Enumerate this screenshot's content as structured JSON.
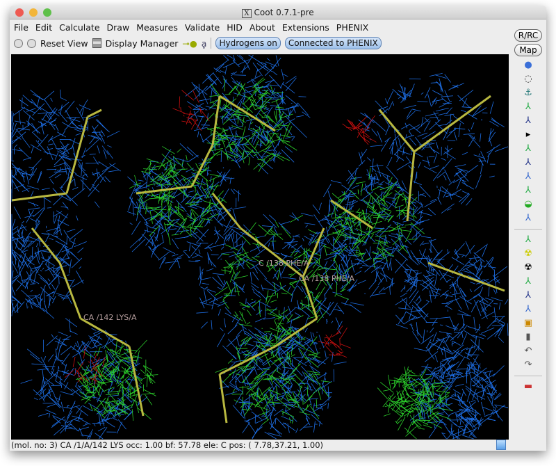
{
  "window": {
    "title": "Coot 0.7.1-pre"
  },
  "menu": [
    "File",
    "Edit",
    "Calculate",
    "Draw",
    "Measures",
    "Validate",
    "HID",
    "About",
    "Extensions",
    "PHENIX"
  ],
  "toolbar": {
    "reset_view": "Reset View",
    "display_manager": "Display Manager",
    "hydrogens": "Hydrogens on",
    "phenix": "Connected to PHENIX"
  },
  "side": {
    "rrc": "R/RC",
    "map": "Map",
    "icons": [
      "refine-sphere-icon",
      "rotate-icon",
      "anchor-icon",
      "regularize-icon",
      "rigid-body-icon",
      "arrow-right-icon",
      "real-space-refine-icon",
      "rotamer-icon",
      "flip-peptide-icon",
      "torsion-icon",
      "side-chain-icon",
      "side-180-icon",
      "mutate-icon",
      "add-water-icon",
      "radioactive-icon",
      "add-atom-icon",
      "delete-atom-icon",
      "add-terminal-icon",
      "clear-icon",
      "trash-icon",
      "undo-icon",
      "redo-icon",
      "flag-icon"
    ]
  },
  "labels": {
    "c138": "C /138 PHE/A",
    "ca138": "CA /138 PHE/A",
    "ca142": "CA /142 LYS/A"
  },
  "status": "(mol. no: 3)  CA /1/A/142 LYS occ:  1.00 bf: 57.78 ele:  C pos: ( 7.78,37.21, 1.00)",
  "colors": {
    "mesh_blue": "#1e6fe6",
    "mesh_green": "#2cd12c",
    "bond": "#b8b840",
    "diff_neg": "#cc1010"
  }
}
